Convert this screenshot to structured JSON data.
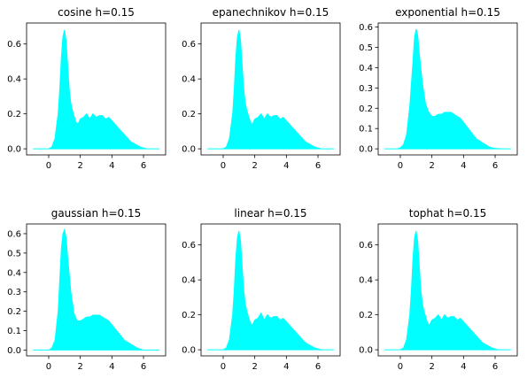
{
  "chart_data": [
    {
      "type": "area",
      "title": "cosine h=0.15",
      "xlim": [
        -1.4,
        7.4
      ],
      "ylim": [
        -0.035,
        0.72
      ],
      "xticks": [
        0,
        2,
        4,
        6
      ],
      "yticks": [
        0.0,
        0.2,
        0.4,
        0.6
      ],
      "ytick_labels": [
        "0.0",
        "0.2",
        "0.4",
        "0.6"
      ],
      "x": [
        -1,
        0,
        0.2,
        0.4,
        0.6,
        0.7,
        0.8,
        0.9,
        1.0,
        1.1,
        1.2,
        1.3,
        1.4,
        1.5,
        1.6,
        1.7,
        1.8,
        1.9,
        2.0,
        2.2,
        2.4,
        2.6,
        2.8,
        3.0,
        3.2,
        3.4,
        3.6,
        3.8,
        4.0,
        4.2,
        4.4,
        4.6,
        4.8,
        5.0,
        5.2,
        5.4,
        5.6,
        5.8,
        6.0,
        6.2,
        6.4,
        7
      ],
      "values": [
        0.0,
        0.0,
        0.01,
        0.06,
        0.2,
        0.34,
        0.52,
        0.64,
        0.68,
        0.62,
        0.48,
        0.34,
        0.26,
        0.22,
        0.19,
        0.16,
        0.14,
        0.15,
        0.17,
        0.18,
        0.2,
        0.17,
        0.2,
        0.18,
        0.19,
        0.19,
        0.17,
        0.18,
        0.16,
        0.14,
        0.12,
        0.1,
        0.08,
        0.06,
        0.04,
        0.03,
        0.02,
        0.01,
        0.005,
        0.0,
        0.0,
        0.0
      ],
      "color": "#00ffff"
    },
    {
      "type": "area",
      "title": "epanechnikov h=0.15",
      "xlim": [
        -1.4,
        7.4
      ],
      "ylim": [
        -0.035,
        0.72
      ],
      "xticks": [
        0,
        2,
        4,
        6
      ],
      "yticks": [
        0.0,
        0.2,
        0.4,
        0.6
      ],
      "ytick_labels": [
        "0.0",
        "0.2",
        "0.4",
        "0.6"
      ],
      "x": [
        -1,
        0,
        0.2,
        0.4,
        0.6,
        0.7,
        0.8,
        0.9,
        1.0,
        1.1,
        1.2,
        1.3,
        1.4,
        1.5,
        1.6,
        1.7,
        1.8,
        1.9,
        2.0,
        2.2,
        2.4,
        2.6,
        2.8,
        3.0,
        3.2,
        3.4,
        3.6,
        3.8,
        4.0,
        4.2,
        4.4,
        4.6,
        4.8,
        5.0,
        5.2,
        5.4,
        5.6,
        5.8,
        6.0,
        6.2,
        6.4,
        7
      ],
      "values": [
        0.0,
        0.0,
        0.01,
        0.06,
        0.2,
        0.34,
        0.52,
        0.64,
        0.68,
        0.62,
        0.48,
        0.34,
        0.26,
        0.22,
        0.19,
        0.16,
        0.14,
        0.15,
        0.17,
        0.18,
        0.2,
        0.17,
        0.2,
        0.18,
        0.19,
        0.19,
        0.17,
        0.18,
        0.16,
        0.14,
        0.12,
        0.1,
        0.08,
        0.06,
        0.04,
        0.03,
        0.02,
        0.01,
        0.005,
        0.0,
        0.0,
        0.0
      ],
      "color": "#00ffff"
    },
    {
      "type": "area",
      "title": "exponential h=0.15",
      "xlim": [
        -1.4,
        7.4
      ],
      "ylim": [
        -0.03,
        0.62
      ],
      "xticks": [
        0,
        2,
        4,
        6
      ],
      "yticks": [
        0.0,
        0.1,
        0.2,
        0.3,
        0.4,
        0.5,
        0.6
      ],
      "ytick_labels": [
        "0.0",
        "0.1",
        "0.2",
        "0.3",
        "0.4",
        "0.5",
        "0.6"
      ],
      "x": [
        -1,
        -0.2,
        0.0,
        0.2,
        0.4,
        0.6,
        0.8,
        0.9,
        1.0,
        1.1,
        1.2,
        1.4,
        1.6,
        1.8,
        2.0,
        2.2,
        2.4,
        2.6,
        2.8,
        3.0,
        3.2,
        3.4,
        3.6,
        3.8,
        4.0,
        4.2,
        4.4,
        4.6,
        4.8,
        5.0,
        5.2,
        5.4,
        5.6,
        5.8,
        6.0,
        6.4,
        7
      ],
      "values": [
        0.0,
        0.0,
        0.005,
        0.02,
        0.07,
        0.21,
        0.43,
        0.55,
        0.59,
        0.56,
        0.47,
        0.32,
        0.22,
        0.18,
        0.16,
        0.16,
        0.17,
        0.17,
        0.18,
        0.18,
        0.18,
        0.17,
        0.16,
        0.15,
        0.13,
        0.11,
        0.09,
        0.07,
        0.05,
        0.04,
        0.03,
        0.02,
        0.01,
        0.005,
        0.002,
        0.0,
        0.0
      ],
      "color": "#00ffff"
    },
    {
      "type": "area",
      "title": "gaussian h=0.15",
      "xlim": [
        -1.4,
        7.4
      ],
      "ylim": [
        -0.03,
        0.65
      ],
      "xticks": [
        0,
        2,
        4,
        6
      ],
      "yticks": [
        0.0,
        0.1,
        0.2,
        0.3,
        0.4,
        0.5,
        0.6
      ],
      "ytick_labels": [
        "0.0",
        "0.1",
        "0.2",
        "0.3",
        "0.4",
        "0.5",
        "0.6"
      ],
      "x": [
        -1,
        0.0,
        0.2,
        0.4,
        0.6,
        0.7,
        0.8,
        0.9,
        1.0,
        1.1,
        1.2,
        1.4,
        1.6,
        1.8,
        2.0,
        2.2,
        2.4,
        2.6,
        2.8,
        3.0,
        3.2,
        3.4,
        3.6,
        3.8,
        4.0,
        4.2,
        4.4,
        4.6,
        4.8,
        5.0,
        5.2,
        5.4,
        5.6,
        5.8,
        6.0,
        6.4,
        7
      ],
      "values": [
        0.0,
        0.0,
        0.01,
        0.05,
        0.2,
        0.36,
        0.52,
        0.6,
        0.62,
        0.58,
        0.48,
        0.3,
        0.19,
        0.15,
        0.15,
        0.16,
        0.17,
        0.17,
        0.18,
        0.18,
        0.18,
        0.17,
        0.16,
        0.15,
        0.13,
        0.11,
        0.09,
        0.07,
        0.05,
        0.04,
        0.03,
        0.02,
        0.01,
        0.005,
        0.0,
        0.0,
        0.0
      ],
      "color": "#00ffff"
    },
    {
      "type": "area",
      "title": "linear h=0.15",
      "xlim": [
        -1.4,
        7.4
      ],
      "ylim": [
        -0.035,
        0.72
      ],
      "xticks": [
        0,
        2,
        4,
        6
      ],
      "yticks": [
        0.0,
        0.2,
        0.4,
        0.6
      ],
      "ytick_labels": [
        "0.0",
        "0.2",
        "0.4",
        "0.6"
      ],
      "x": [
        -1,
        0,
        0.2,
        0.4,
        0.6,
        0.7,
        0.8,
        0.9,
        1.0,
        1.1,
        1.2,
        1.3,
        1.4,
        1.5,
        1.6,
        1.7,
        1.8,
        1.9,
        2.0,
        2.2,
        2.4,
        2.6,
        2.8,
        3.0,
        3.2,
        3.4,
        3.6,
        3.8,
        4.0,
        4.2,
        4.4,
        4.6,
        4.8,
        5.0,
        5.2,
        5.4,
        5.6,
        5.8,
        6.0,
        6.2,
        6.4,
        7
      ],
      "values": [
        0.0,
        0.0,
        0.01,
        0.06,
        0.2,
        0.34,
        0.52,
        0.64,
        0.68,
        0.62,
        0.48,
        0.34,
        0.26,
        0.22,
        0.19,
        0.16,
        0.14,
        0.15,
        0.17,
        0.18,
        0.21,
        0.17,
        0.2,
        0.18,
        0.19,
        0.19,
        0.17,
        0.18,
        0.16,
        0.14,
        0.12,
        0.1,
        0.08,
        0.06,
        0.04,
        0.03,
        0.02,
        0.01,
        0.005,
        0.0,
        0.0,
        0.0
      ],
      "color": "#00ffff"
    },
    {
      "type": "area",
      "title": "tophat h=0.15",
      "xlim": [
        -1.4,
        7.4
      ],
      "ylim": [
        -0.035,
        0.72
      ],
      "xticks": [
        0,
        2,
        4,
        6
      ],
      "yticks": [
        0.0,
        0.2,
        0.4,
        0.6
      ],
      "ytick_labels": [
        "0.0",
        "0.2",
        "0.4",
        "0.6"
      ],
      "x": [
        -1,
        0,
        0.2,
        0.4,
        0.6,
        0.7,
        0.8,
        0.9,
        1.0,
        1.1,
        1.2,
        1.3,
        1.4,
        1.5,
        1.6,
        1.7,
        1.8,
        1.9,
        2.0,
        2.2,
        2.4,
        2.6,
        2.8,
        3.0,
        3.2,
        3.4,
        3.6,
        3.8,
        4.0,
        4.2,
        4.4,
        4.6,
        4.8,
        5.0,
        5.2,
        5.4,
        5.6,
        5.8,
        6.0,
        6.2,
        6.4,
        7
      ],
      "values": [
        0.0,
        0.0,
        0.01,
        0.06,
        0.2,
        0.34,
        0.52,
        0.64,
        0.68,
        0.62,
        0.48,
        0.34,
        0.26,
        0.22,
        0.19,
        0.16,
        0.14,
        0.15,
        0.17,
        0.18,
        0.2,
        0.17,
        0.2,
        0.18,
        0.19,
        0.19,
        0.17,
        0.18,
        0.16,
        0.14,
        0.12,
        0.1,
        0.08,
        0.06,
        0.04,
        0.03,
        0.02,
        0.01,
        0.005,
        0.0,
        0.0,
        0.0
      ],
      "color": "#00ffff"
    }
  ]
}
